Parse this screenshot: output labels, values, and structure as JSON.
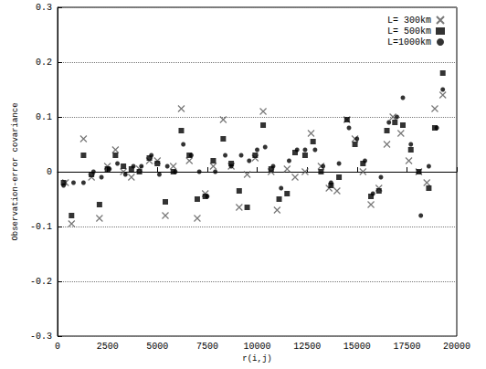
{
  "chart_data": {
    "type": "scatter",
    "x_label": "r(i,j)",
    "y_label": "Observation-error covariance",
    "xlim": [
      0,
      20000
    ],
    "xticks": [
      0,
      2500,
      5000,
      7500,
      10000,
      12500,
      15000,
      17500,
      20000
    ],
    "ylim": [
      -0.3,
      0.3
    ],
    "yticks": [
      -0.3,
      -0.2,
      -0.1,
      0,
      0.1,
      0.2,
      0.3
    ],
    "grid": true,
    "legend": "upper right",
    "series": [
      {
        "name": "L= 300km",
        "color": "#555555",
        "marker": "x",
        "x": [
          400,
          700,
          1300,
          1700,
          2100,
          2500,
          2900,
          3300,
          3700,
          4100,
          4600,
          5000,
          5400,
          5800,
          6200,
          6600,
          7000,
          7400,
          7800,
          8300,
          8700,
          9100,
          9500,
          9900,
          10300,
          10700,
          11000,
          11500,
          11900,
          12400,
          12700,
          13200,
          13600,
          14000,
          14500,
          14900,
          15300,
          15700,
          16100,
          16500,
          16800,
          17200,
          17600,
          18100,
          18500,
          18900,
          19300
        ],
        "values": [
          -0.02,
          -0.095,
          0.06,
          -0.01,
          -0.085,
          0.01,
          0.04,
          0.0,
          -0.01,
          0.005,
          0.02,
          0.02,
          -0.08,
          0.01,
          0.115,
          0.02,
          -0.085,
          -0.04,
          0.01,
          0.095,
          0.01,
          -0.065,
          -0.005,
          0.025,
          0.11,
          0.0,
          -0.07,
          0.005,
          -0.01,
          0.0,
          0.07,
          0.01,
          -0.03,
          -0.035,
          0.095,
          0.06,
          0.0,
          -0.06,
          -0.03,
          0.05,
          0.1,
          0.07,
          0.02,
          0.0,
          -0.02,
          0.115,
          0.14
        ]
      },
      {
        "name": "L= 500km",
        "color": "#000000",
        "marker": "square",
        "x": [
          300,
          700,
          1300,
          1700,
          2100,
          2500,
          2900,
          3300,
          3700,
          4100,
          4600,
          5000,
          5400,
          5800,
          6200,
          6600,
          7000,
          7400,
          7800,
          8300,
          8700,
          9100,
          9500,
          9900,
          10300,
          10700,
          11100,
          11500,
          11900,
          12400,
          12800,
          13200,
          13700,
          14100,
          14500,
          14900,
          15300,
          15700,
          16100,
          16500,
          16900,
          17300,
          17700,
          18100,
          18600,
          18900,
          19300
        ],
        "values": [
          -0.02,
          -0.08,
          0.03,
          -0.005,
          -0.06,
          0.005,
          0.03,
          0.01,
          0.005,
          0.0,
          0.025,
          0.015,
          -0.055,
          0.0,
          0.075,
          0.03,
          -0.05,
          -0.045,
          0.02,
          0.06,
          0.015,
          -0.035,
          -0.065,
          0.03,
          0.085,
          0.005,
          -0.05,
          -0.04,
          0.035,
          0.03,
          0.055,
          0.0,
          -0.025,
          -0.01,
          0.095,
          0.05,
          0.015,
          -0.045,
          -0.035,
          0.075,
          0.09,
          0.085,
          0.04,
          0.0,
          -0.03,
          0.08,
          0.18
        ]
      },
      {
        "name": "L=1000km",
        "color": "#000000",
        "marker": "circle",
        "x": [
          300,
          800,
          1300,
          1800,
          2200,
          2600,
          3000,
          3400,
          3800,
          4200,
          4700,
          5100,
          5500,
          5900,
          6300,
          6700,
          7100,
          7500,
          7900,
          8400,
          8700,
          9200,
          9600,
          10000,
          10400,
          10800,
          11200,
          11600,
          12000,
          12400,
          12900,
          13300,
          13700,
          14100,
          14600,
          15000,
          15400,
          15800,
          16200,
          16600,
          17000,
          17300,
          17700,
          18200,
          18600,
          19000,
          19300
        ],
        "values": [
          -0.025,
          -0.02,
          -0.02,
          0.0,
          -0.01,
          0.005,
          0.015,
          -0.005,
          0.01,
          0.01,
          0.03,
          -0.005,
          0.01,
          0.0,
          0.05,
          0.03,
          0.0,
          -0.045,
          0.0,
          0.03,
          0.01,
          0.03,
          0.02,
          0.04,
          0.045,
          0.01,
          -0.03,
          0.02,
          0.04,
          0.04,
          0.04,
          0.01,
          -0.02,
          0.015,
          0.08,
          0.06,
          0.02,
          -0.04,
          -0.01,
          0.09,
          0.1,
          0.135,
          0.05,
          -0.08,
          0.01,
          0.08,
          0.15
        ]
      }
    ]
  }
}
